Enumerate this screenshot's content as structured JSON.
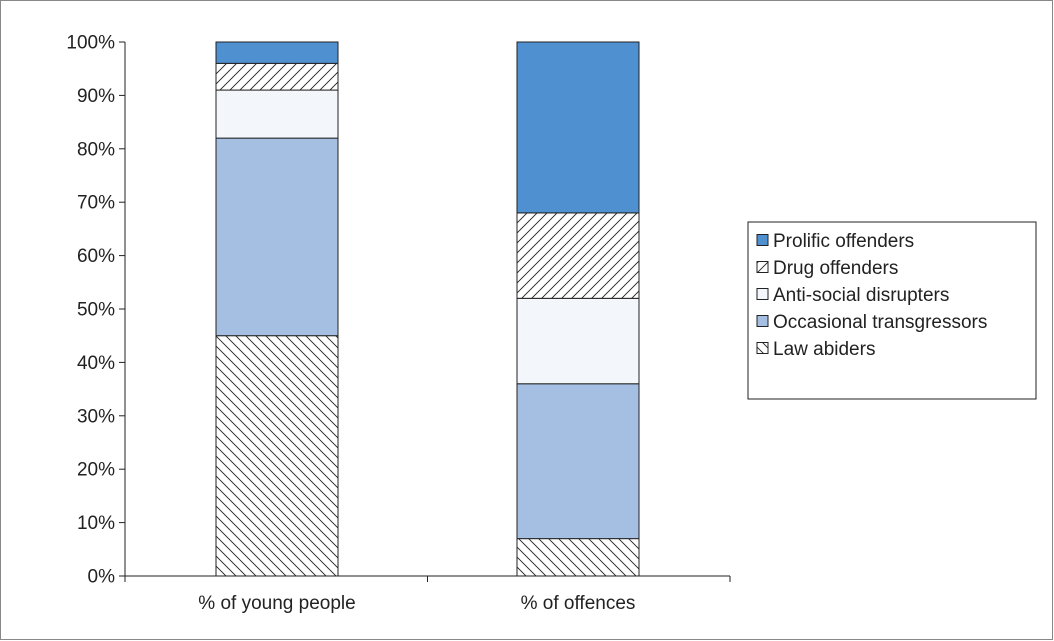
{
  "chart_data": {
    "type": "bar",
    "stacked": true,
    "categories": [
      "% of young people",
      "% of offences"
    ],
    "series": [
      {
        "name": "Law abiders",
        "values": [
          45,
          7
        ],
        "color": "#ffffff",
        "pattern": "hatch-backslash"
      },
      {
        "name": "Occasional transgressors",
        "values": [
          37,
          29
        ],
        "color": "#a5bfe3",
        "pattern": "solid"
      },
      {
        "name": "Anti-social disrupters",
        "values": [
          9,
          16
        ],
        "color": "#f3f7fc",
        "pattern": "solid"
      },
      {
        "name": "Drug offenders",
        "values": [
          5,
          16
        ],
        "color": "#ffffff",
        "pattern": "hatch-slash"
      },
      {
        "name": "Prolific offenders",
        "values": [
          4,
          32
        ],
        "color": "#4e90d0",
        "pattern": "solid"
      }
    ],
    "legend_order": [
      "Prolific offenders",
      "Drug offenders",
      "Anti-social disrupters",
      "Occasional transgressors",
      "Law abiders"
    ],
    "yticks": [
      "0%",
      "10%",
      "20%",
      "30%",
      "40%",
      "50%",
      "60%",
      "70%",
      "80%",
      "90%",
      "100%"
    ],
    "ylim": [
      0,
      100
    ],
    "xlabel": "",
    "ylabel": "",
    "title": "",
    "grid": false,
    "legend_position": "right"
  }
}
